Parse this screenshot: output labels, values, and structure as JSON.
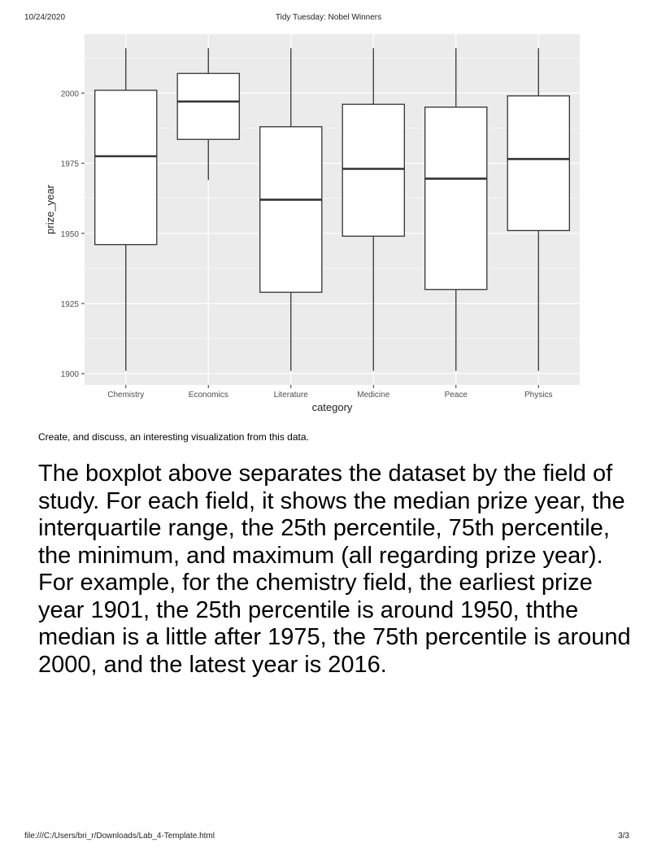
{
  "page": {
    "date": "10/24/2020",
    "title": "Tidy Tuesday: Nobel Winners",
    "footer_path": "file:///C:/Users/bri_r/Downloads/Lab_4-Template.html",
    "page_number": "3/3"
  },
  "chart_data": {
    "type": "boxplot",
    "title": "",
    "xlabel": "category",
    "ylabel": "prize_year",
    "ylim": [
      1896,
      2021
    ],
    "yticks": [
      1900,
      1925,
      1950,
      1975,
      2000
    ],
    "grid": true,
    "legend": "none",
    "categories": [
      "Chemistry",
      "Economics",
      "Literature",
      "Medicine",
      "Peace",
      "Physics"
    ],
    "boxes": [
      {
        "category": "Chemistry",
        "min": 1901,
        "q1": 1946,
        "median": 1977.5,
        "q3": 2001,
        "max": 2016
      },
      {
        "category": "Economics",
        "min": 1969,
        "q1": 1983.5,
        "median": 1997,
        "q3": 2007,
        "max": 2016
      },
      {
        "category": "Literature",
        "min": 1901,
        "q1": 1929,
        "median": 1962,
        "q3": 1988,
        "max": 2016
      },
      {
        "category": "Medicine",
        "min": 1901,
        "q1": 1949,
        "median": 1973,
        "q3": 1996,
        "max": 2016
      },
      {
        "category": "Peace",
        "min": 1901,
        "q1": 1930,
        "median": 1969.5,
        "q3": 1995,
        "max": 2016
      },
      {
        "category": "Physics",
        "min": 1901,
        "q1": 1951,
        "median": 1976.5,
        "q3": 1999,
        "max": 2016
      }
    ],
    "colors": {
      "panel": "#ebebeb",
      "grid": "#ffffff",
      "box_fill": "#ffffff",
      "line": "#333333",
      "tick_text": "#4d4d4d"
    }
  },
  "content": {
    "prompt": "Create, and discuss, an interesting visualization from this data.",
    "answer": "The boxplot above separates the dataset by the field of study. For each field, it shows the median prize year, the interquartile range, the 25th percentile, 75th percentile, the minimum, and maximum (all regarding prize year). For example, for the chemistry field, the earliest prize year 1901, the 25th percentile is around 1950, ththe median is a little after 1975, the 75th percentile is around 2000, and the latest year is 2016."
  }
}
